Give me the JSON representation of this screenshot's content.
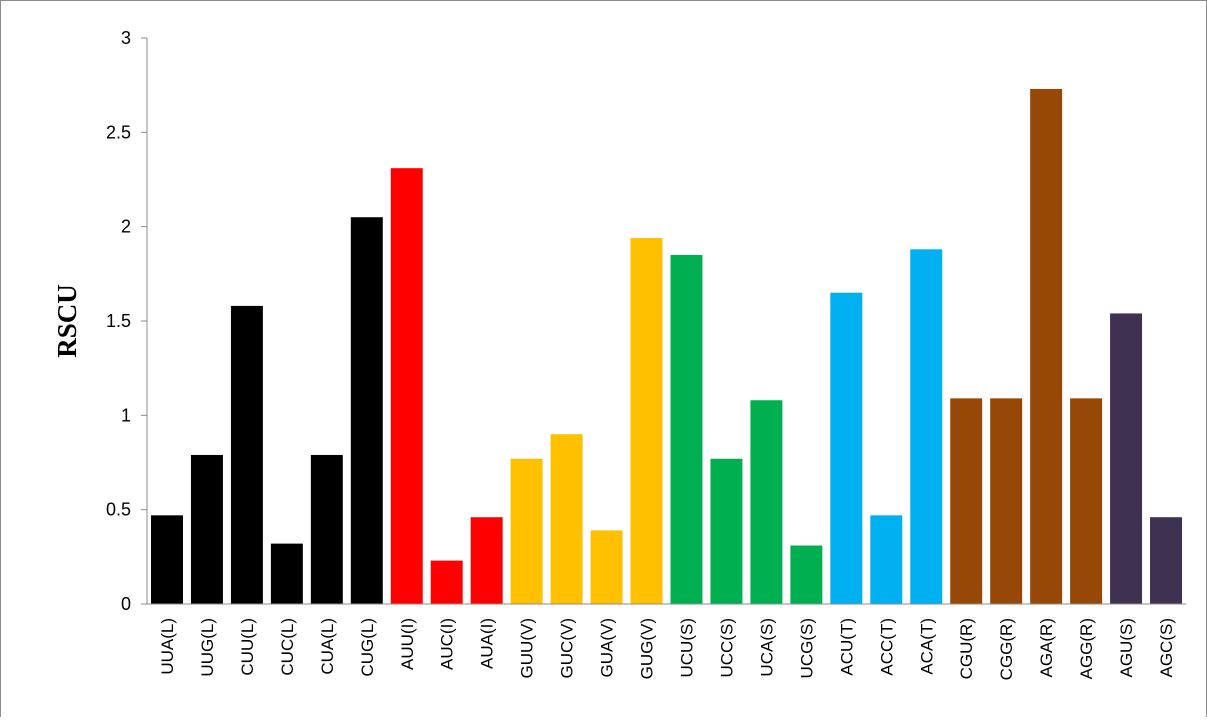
{
  "chart_data": {
    "type": "bar",
    "title": "",
    "xlabel": "",
    "ylabel": "RSCU",
    "ylim": [
      0,
      3
    ],
    "yticks": [
      "0",
      "0.5",
      "1",
      "1.5",
      "2",
      "2.5",
      "3"
    ],
    "grid": false,
    "legend": "none",
    "categories": [
      "UUA(L)",
      "UUG(L)",
      "CUU(L)",
      "CUC(L)",
      "CUA(L)",
      "CUG(L)",
      "AUU(I)",
      "AUC(I)",
      "AUA(I)",
      "GUU(V)",
      "GUC(V)",
      "GUA(V)",
      "GUG(V)",
      "UCU(S)",
      "UCC(S)",
      "UCA(S)",
      "UCG(S)",
      "ACU(T)",
      "ACC(T)",
      "ACA(T)",
      "CGU(R)",
      "CGG(R)",
      "AGA(R)",
      "AGG(R)",
      "AGU(S)",
      "AGC(S)"
    ],
    "values": [
      0.47,
      0.79,
      1.58,
      0.32,
      0.79,
      2.05,
      2.31,
      0.23,
      0.46,
      0.77,
      0.9,
      0.39,
      1.94,
      1.85,
      0.77,
      1.08,
      0.31,
      1.65,
      0.47,
      1.88,
      1.09,
      1.09,
      2.73,
      1.09,
      1.54,
      0.46
    ],
    "bar_colors": [
      "#000000",
      "#000000",
      "#000000",
      "#000000",
      "#000000",
      "#000000",
      "#ff0000",
      "#ff0000",
      "#ff0000",
      "#ffc000",
      "#ffc000",
      "#ffc000",
      "#ffc000",
      "#00b050",
      "#00b050",
      "#00b050",
      "#00b050",
      "#00b0f0",
      "#00b0f0",
      "#00b0f0",
      "#974806",
      "#974806",
      "#974806",
      "#974806",
      "#3f3151",
      "#3f3151"
    ]
  }
}
